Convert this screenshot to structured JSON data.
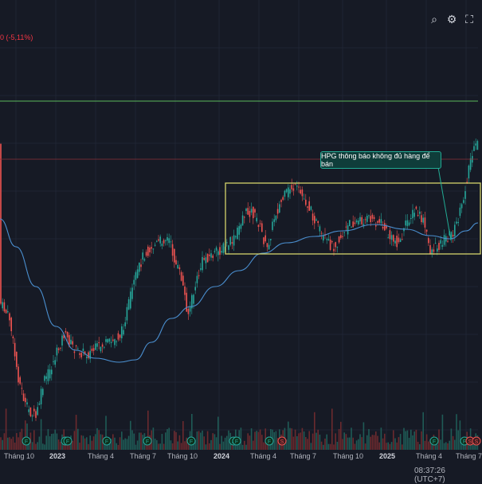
{
  "toolbar": {
    "icons": [
      "zoom-icon",
      "gear-icon",
      "fullscreen-icon"
    ]
  },
  "header": {
    "change_text": "0 (-5,11%)"
  },
  "annotation": {
    "text": "HPG thông báo không đủ hàng để bán"
  },
  "x_axis": {
    "labels": [
      {
        "text": "Tháng 10",
        "kind": "month"
      },
      {
        "text": "2023",
        "kind": "year"
      },
      {
        "text": "Tháng 4",
        "kind": "month"
      },
      {
        "text": "Tháng 7",
        "kind": "month"
      },
      {
        "text": "Tháng 10",
        "kind": "month"
      },
      {
        "text": "2024",
        "kind": "year"
      },
      {
        "text": "Tháng 4",
        "kind": "month"
      },
      {
        "text": "Tháng 7",
        "kind": "month"
      },
      {
        "text": "Tháng 10",
        "kind": "month"
      },
      {
        "text": "2025",
        "kind": "year"
      },
      {
        "text": "Tháng 4",
        "kind": "month"
      },
      {
        "text": "Tháng 7",
        "kind": "month"
      }
    ]
  },
  "status": {
    "time": "08:37:26 (UTC+7)"
  },
  "colors": {
    "background": "#161a25",
    "up": "#26a69a",
    "down": "#ef5350",
    "ma": "#2962ff",
    "box": "#d4d46a",
    "resistance": "#5bb85b",
    "price_line": "#8b2f3a",
    "annotation_border": "#22ab94"
  },
  "chart_data": {
    "type": "candlestick",
    "series": [
      {
        "name": "",
        "kind": "price"
      },
      {
        "name": "",
        "kind": "moving-average"
      }
    ],
    "events": [
      "F",
      "F",
      "F",
      "F",
      "F",
      "F",
      "F",
      "F",
      "F",
      "S",
      "F",
      "F",
      "S",
      "S"
    ],
    "grid": true
  }
}
